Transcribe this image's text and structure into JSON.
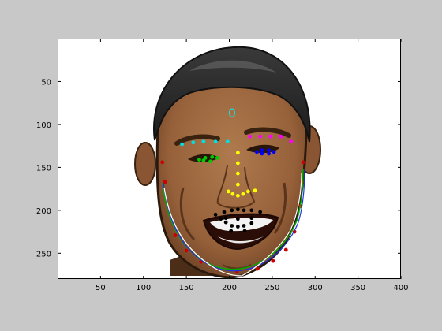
{
  "figure": {
    "background_color": "#c8c8c8",
    "overlay_text": "0",
    "overlay_text_color": "#1fd8d8"
  },
  "axes": {
    "x_ticks": [
      "50",
      "100",
      "150",
      "200",
      "250",
      "300",
      "350",
      "400"
    ],
    "y_ticks": [
      "50",
      "100",
      "150",
      "200",
      "250"
    ],
    "xlim": [
      0,
      400
    ],
    "ylim": [
      280,
      0
    ]
  },
  "landmarks": {
    "right_brow": {
      "color": "#00e0e0",
      "points": [
        [
          145,
          123
        ],
        [
          158,
          121
        ],
        [
          170,
          120
        ],
        [
          184,
          120
        ],
        [
          198,
          120
        ]
      ]
    },
    "left_brow": {
      "color": "#ff00ff",
      "points": [
        [
          224,
          114
        ],
        [
          236,
          114
        ],
        [
          248,
          114
        ],
        [
          260,
          114
        ],
        [
          272,
          120
        ]
      ]
    },
    "right_eye": {
      "color": "#00cc00",
      "points": [
        [
          165,
          141
        ],
        [
          172,
          139
        ],
        [
          180,
          138
        ],
        [
          186,
          139
        ],
        [
          178,
          143
        ],
        [
          170,
          142
        ]
      ]
    },
    "left_eye": {
      "color": "#0000ff",
      "points": [
        [
          232,
          132
        ],
        [
          238,
          130
        ],
        [
          246,
          130
        ],
        [
          252,
          132
        ],
        [
          246,
          134
        ],
        [
          238,
          134
        ]
      ]
    },
    "nose": {
      "color": "#ffff00",
      "points": [
        [
          210,
          133
        ],
        [
          210,
          145
        ],
        [
          210,
          157
        ],
        [
          210,
          170
        ],
        [
          199,
          178
        ],
        [
          204,
          181
        ],
        [
          210,
          183
        ],
        [
          216,
          181
        ],
        [
          222,
          178
        ],
        [
          230,
          177
        ]
      ]
    },
    "mouth": {
      "color": "#000000",
      "points": [
        [
          184,
          205
        ],
        [
          194,
          202
        ],
        [
          203,
          200
        ],
        [
          210,
          199
        ],
        [
          217,
          200
        ],
        [
          226,
          200
        ],
        [
          236,
          202
        ],
        [
          196,
          214
        ],
        [
          203,
          218
        ],
        [
          210,
          219
        ],
        [
          217,
          218
        ],
        [
          226,
          215
        ],
        [
          196,
          209
        ],
        [
          210,
          210
        ],
        [
          226,
          209
        ],
        [
          190,
          210
        ],
        [
          202,
          224
        ],
        [
          218,
          224
        ]
      ]
    },
    "jaw": {
      "color": "#cc0000",
      "points": [
        [
          122,
          144
        ],
        [
          125,
          167
        ],
        [
          129,
          200
        ],
        [
          137,
          229
        ],
        [
          150,
          247
        ],
        [
          167,
          260
        ],
        [
          186,
          268
        ],
        [
          209,
          271
        ],
        [
          233,
          268
        ],
        [
          251,
          259
        ],
        [
          266,
          246
        ],
        [
          276,
          225
        ],
        [
          283,
          195
        ],
        [
          285,
          167
        ],
        [
          286,
          144
        ]
      ]
    }
  }
}
